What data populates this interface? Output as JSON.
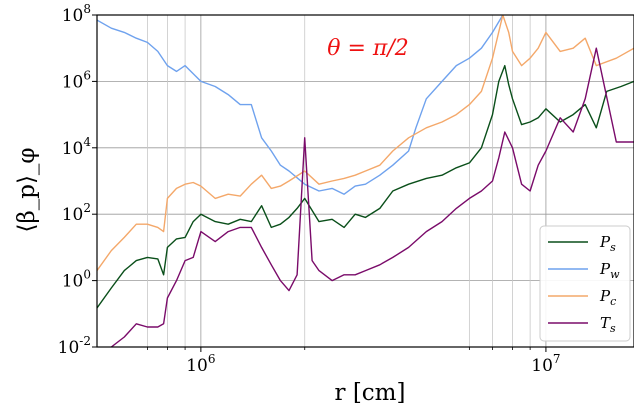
{
  "chart_data": {
    "type": "line",
    "xlabel": "r [cm]",
    "ylabel": "⟨β_p⟩_φ",
    "x_scale": "log",
    "y_scale": "log",
    "xlim": [
      500000,
      18000000
    ],
    "ylim": [
      0.01,
      100000000
    ],
    "x_ticks": [
      {
        "value": 1000000,
        "base": "10",
        "exp": "6"
      },
      {
        "value": 10000000,
        "base": "10",
        "exp": "7"
      }
    ],
    "y_ticks": [
      {
        "value": 0.01,
        "base": "10",
        "exp": "-2"
      },
      {
        "value": 1,
        "base": "10",
        "exp": "0"
      },
      {
        "value": 100,
        "base": "10",
        "exp": "2"
      },
      {
        "value": 10000,
        "base": "10",
        "exp": "4"
      },
      {
        "value": 1000000,
        "base": "10",
        "exp": "6"
      },
      {
        "value": 100000000,
        "base": "10",
        "exp": "8"
      }
    ],
    "grid": true,
    "vertical_lines": [
      700000,
      800000,
      900000,
      2000000,
      6000000,
      7000000,
      8000000,
      9000000
    ],
    "legend_position": "lower-right",
    "annotation": {
      "text": "θ = π/2",
      "color": "#ee1111"
    },
    "series": [
      {
        "name": "P_s",
        "sym": "P",
        "sub": "s",
        "color": "#0a4f1a",
        "x": [
          500000,
          550000,
          600000,
          650000,
          700000,
          750000,
          780000,
          800000,
          850000,
          900000,
          950000,
          1000000,
          1100000,
          1200000,
          1300000,
          1400000,
          1500000,
          1600000,
          1700000,
          1800000,
          1900000,
          2000000,
          2200000,
          2400000,
          2600000,
          2800000,
          3000000,
          3300000,
          3600000,
          4000000,
          4500000,
          5000000,
          5500000,
          6000000,
          6500000,
          7000000,
          7300000,
          7600000,
          7800000,
          8000000,
          8500000,
          9000000,
          9500000,
          10000000,
          11000000,
          12000000,
          13000000,
          14000000,
          15000000,
          16500000,
          18000000
        ],
        "y": [
          0.15,
          0.6,
          2,
          4,
          5,
          4.5,
          1.5,
          10,
          18,
          20,
          60,
          100,
          60,
          50,
          70,
          60,
          180,
          40,
          50,
          80,
          150,
          300,
          60,
          70,
          40,
          100,
          80,
          150,
          500,
          800,
          1200,
          1500,
          2500,
          3500,
          10000,
          100000,
          1000000,
          3000000,
          800000,
          300000,
          50000,
          60000,
          80000,
          150000,
          60000,
          100000,
          200000,
          40000,
          500000,
          700000,
          1000000
        ]
      },
      {
        "name": "P_w",
        "sym": "P",
        "sub": "w",
        "color": "#6fa2ee",
        "x": [
          500000,
          550000,
          600000,
          650000,
          700000,
          750000,
          800000,
          850000,
          900000,
          1000000,
          1100000,
          1200000,
          1300000,
          1400000,
          1500000,
          1600000,
          1700000,
          1800000,
          2000000,
          2200000,
          2400000,
          2600000,
          2800000,
          3000000,
          3300000,
          3600000,
          4000000,
          4200000,
          4500000,
          5000000,
          5500000,
          6000000,
          6500000,
          7000000,
          7500000
        ],
        "y": [
          70000000,
          40000000,
          30000000,
          20000000,
          15000000,
          8000000,
          3000000,
          2000000,
          3000000,
          1000000,
          700000,
          400000,
          200000,
          200000,
          20000,
          8000,
          3000,
          2000,
          800,
          500,
          600,
          400,
          700,
          800,
          1500,
          3000,
          8000,
          40000,
          300000,
          1000000,
          3000000,
          5000000,
          10000000,
          30000000,
          100000000
        ]
      },
      {
        "name": "P_c",
        "sym": "P",
        "sub": "c",
        "color": "#f4a86a",
        "x": [
          500000,
          550000,
          600000,
          650000,
          700000,
          750000,
          780000,
          800000,
          850000,
          900000,
          950000,
          1000000,
          1100000,
          1200000,
          1300000,
          1400000,
          1500000,
          1600000,
          1700000,
          1800000,
          2000000,
          2200000,
          2400000,
          2600000,
          2800000,
          3000000,
          3300000,
          3600000,
          4000000,
          4500000,
          5000000,
          5500000,
          6000000,
          6500000,
          7000000,
          7500000,
          7800000,
          8000000,
          8500000,
          9000000,
          9500000,
          10000000,
          11000000,
          12000000,
          13000000,
          14000000,
          16000000,
          18000000
        ],
        "y": [
          2,
          8,
          20,
          50,
          50,
          40,
          30,
          300,
          600,
          800,
          900,
          700,
          300,
          400,
          350,
          800,
          1500,
          600,
          700,
          1000,
          2000,
          800,
          1000,
          1200,
          1500,
          2000,
          3000,
          8000,
          20000,
          40000,
          60000,
          100000,
          200000,
          500000,
          5000000,
          100000000,
          30000000,
          8000000,
          3000000,
          5000000,
          10000000,
          30000000,
          8000000,
          10000000,
          20000000,
          3000000,
          5000000,
          10000000
        ]
      },
      {
        "name": "T_s",
        "sym": "T",
        "sub": "s",
        "color": "#7a0b6a",
        "x": [
          550000,
          600000,
          650000,
          700000,
          750000,
          780000,
          800000,
          850000,
          900000,
          950000,
          1000000,
          1100000,
          1200000,
          1300000,
          1400000,
          1500000,
          1600000,
          1700000,
          1800000,
          1900000,
          2000000,
          2100000,
          2200000,
          2400000,
          2600000,
          2800000,
          3000000,
          3300000,
          3600000,
          4000000,
          4500000,
          5000000,
          5500000,
          6000000,
          6500000,
          7000000,
          7300000,
          7600000,
          8000000,
          8500000,
          9000000,
          9500000,
          10000000,
          11000000,
          12000000,
          13000000,
          14000000,
          16000000,
          18000000
        ],
        "y": [
          0.01,
          0.02,
          0.05,
          0.04,
          0.04,
          0.05,
          0.3,
          1,
          4,
          5,
          30,
          15,
          30,
          40,
          40,
          10,
          3,
          1,
          0.5,
          1.5,
          20000,
          4,
          2,
          1,
          1.5,
          1.5,
          2,
          3,
          5,
          10,
          30,
          60,
          150,
          300,
          500,
          1000,
          5000,
          30000,
          10000,
          800,
          500,
          3000,
          8000,
          80000,
          30000,
          300000,
          10000000,
          15000,
          15000
        ]
      }
    ]
  }
}
